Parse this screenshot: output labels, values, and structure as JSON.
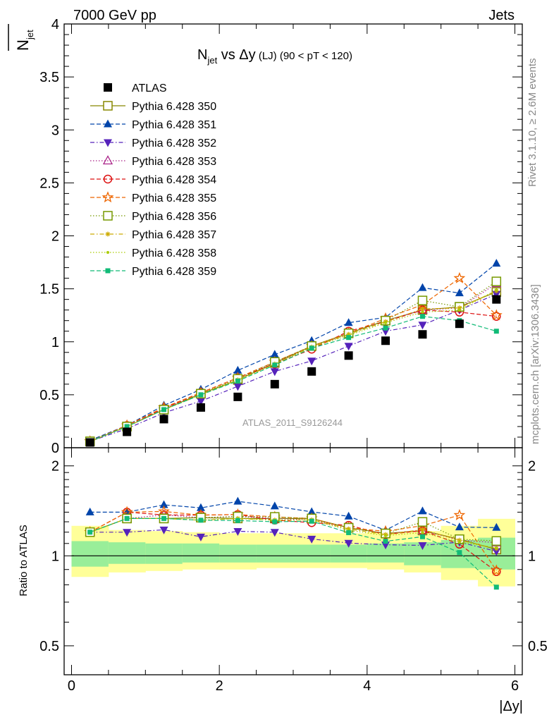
{
  "header": {
    "left": "7000 GeV pp",
    "right": "Jets",
    "title_main": "N",
    "title_sub": "jet",
    "title_rest": " vs Δy",
    "title_small": " (LJ)",
    "title_range": " (90 < pT < 120)",
    "ylabel_top": "N",
    "ylabel_top_sub": "jet",
    "ylabel_bottom": "Ratio to ATLAS",
    "xlabel": "|Δy|",
    "watermark": "ATLAS_2011_S9126244",
    "side_right_top": "Rivet 3.1.10, ≥ 2.6M events",
    "side_right_bottom": "mcplots.cern.ch [arXiv:1306.3436]"
  },
  "chart_data": {
    "type": "scatter",
    "x_edges": [
      0,
      0.5,
      1.0,
      1.5,
      2.0,
      2.5,
      3.0,
      3.5,
      4.0,
      4.5,
      5.0,
      5.5,
      6.0
    ],
    "x": [
      0.25,
      0.75,
      1.25,
      1.75,
      2.25,
      2.75,
      3.25,
      3.75,
      4.25,
      4.75,
      5.25,
      5.75
    ],
    "xlim": [
      -0.1,
      6.1
    ],
    "ylim_top": [
      0,
      4
    ],
    "ylim_bottom": [
      0.4,
      2.3
    ],
    "yticks_top": [
      "0",
      "0.5",
      "1",
      "1.5",
      "2",
      "2.5",
      "3",
      "3.5",
      "4"
    ],
    "yticks_bottom": [
      "0.5",
      "1",
      "2"
    ],
    "xticks": [
      "0",
      "2",
      "4",
      "6"
    ],
    "data": {
      "name": "ATLAS",
      "values": [
        0.05,
        0.15,
        0.27,
        0.38,
        0.48,
        0.6,
        0.72,
        0.87,
        1.01,
        1.07,
        1.17,
        1.4
      ]
    },
    "bands": {
      "yellow_lo": [
        0.85,
        0.88,
        0.89,
        0.9,
        0.9,
        0.91,
        0.91,
        0.91,
        0.9,
        0.88,
        0.83,
        0.79
      ],
      "yellow_hi": [
        1.26,
        1.22,
        1.21,
        1.2,
        1.19,
        1.19,
        1.19,
        1.19,
        1.2,
        1.21,
        1.26,
        1.33
      ],
      "green_lo": [
        0.92,
        0.94,
        0.94,
        0.95,
        0.95,
        0.95,
        0.95,
        0.95,
        0.95,
        0.93,
        0.91,
        0.9
      ],
      "green_hi": [
        1.12,
        1.11,
        1.1,
        1.1,
        1.09,
        1.09,
        1.09,
        1.09,
        1.1,
        1.11,
        1.13,
        1.15
      ]
    },
    "series": [
      {
        "name": "Pythia 6.428 350",
        "color": "#888800",
        "marker": "square-open",
        "dash": "solid",
        "values": [
          0.06,
          0.2,
          0.36,
          0.51,
          0.64,
          0.8,
          0.96,
          1.08,
          1.2,
          1.3,
          1.33,
          1.47
        ]
      },
      {
        "name": "Pythia 6.428 351",
        "color": "#0044aa",
        "marker": "triangle-up",
        "dash": "dashed",
        "values": [
          0.07,
          0.21,
          0.4,
          0.55,
          0.73,
          0.88,
          1.01,
          1.18,
          1.23,
          1.51,
          1.46,
          1.74
        ]
      },
      {
        "name": "Pythia 6.428 352",
        "color": "#5522bb",
        "marker": "triangle-down",
        "dash": "dashdot",
        "values": [
          0.06,
          0.18,
          0.33,
          0.44,
          0.58,
          0.72,
          0.82,
          0.96,
          1.1,
          1.16,
          1.3,
          1.45
        ]
      },
      {
        "name": "Pythia 6.428 353",
        "color": "#aa2288",
        "marker": "triangle-open",
        "dash": "dotted",
        "values": [
          0.06,
          0.2,
          0.37,
          0.51,
          0.65,
          0.8,
          0.95,
          1.08,
          1.2,
          1.3,
          1.32,
          1.55
        ]
      },
      {
        "name": "Pythia 6.428 354",
        "color": "#dd1111",
        "marker": "circle-open",
        "dash": "dashed",
        "values": [
          0.06,
          0.21,
          0.37,
          0.52,
          0.66,
          0.79,
          0.93,
          1.1,
          1.19,
          1.3,
          1.28,
          1.24
        ]
      },
      {
        "name": "Pythia 6.428 355",
        "color": "#ee6600",
        "marker": "star-open",
        "dash": "dashed",
        "values": [
          0.06,
          0.21,
          0.38,
          0.52,
          0.66,
          0.81,
          0.96,
          1.08,
          1.22,
          1.35,
          1.6,
          1.25
        ]
      },
      {
        "name": "Pythia 6.428 356",
        "color": "#779900",
        "marker": "square-open",
        "dash": "dotted",
        "values": [
          0.06,
          0.2,
          0.36,
          0.51,
          0.65,
          0.81,
          0.96,
          1.08,
          1.2,
          1.39,
          1.33,
          1.57
        ]
      },
      {
        "name": "Pythia 6.428 357",
        "color": "#ccaa00",
        "marker": "star-small",
        "dash": "dashdot",
        "values": [
          0.06,
          0.2,
          0.36,
          0.5,
          0.64,
          0.79,
          0.95,
          1.07,
          1.19,
          1.31,
          1.32,
          1.48
        ]
      },
      {
        "name": "Pythia 6.428 358",
        "color": "#aacc00",
        "marker": "dot",
        "dash": "dotted",
        "values": [
          0.06,
          0.2,
          0.36,
          0.5,
          0.64,
          0.79,
          0.95,
          1.06,
          1.18,
          1.28,
          1.3,
          1.49
        ]
      },
      {
        "name": "Pythia 6.428 359",
        "color": "#11bb77",
        "marker": "square-filled",
        "dash": "dashed",
        "values": [
          0.06,
          0.2,
          0.36,
          0.5,
          0.63,
          0.78,
          0.94,
          1.04,
          1.13,
          1.24,
          1.2,
          1.1
        ]
      }
    ]
  }
}
